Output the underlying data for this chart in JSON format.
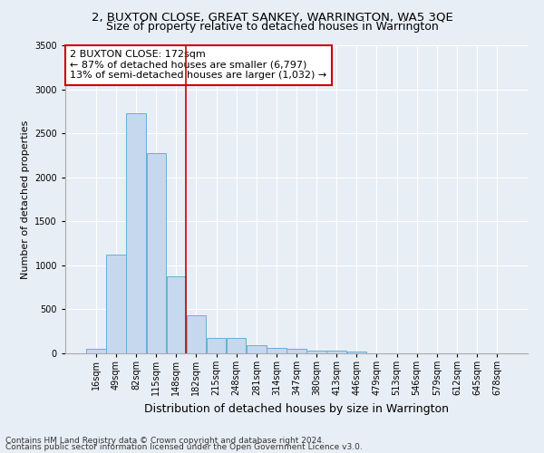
{
  "title": "2, BUXTON CLOSE, GREAT SANKEY, WARRINGTON, WA5 3QE",
  "subtitle": "Size of property relative to detached houses in Warrington",
  "xlabel": "Distribution of detached houses by size in Warrington",
  "ylabel": "Number of detached properties",
  "categories": [
    "16sqm",
    "49sqm",
    "82sqm",
    "115sqm",
    "148sqm",
    "182sqm",
    "215sqm",
    "248sqm",
    "281sqm",
    "314sqm",
    "347sqm",
    "380sqm",
    "413sqm",
    "446sqm",
    "479sqm",
    "513sqm",
    "546sqm",
    "579sqm",
    "612sqm",
    "645sqm",
    "678sqm"
  ],
  "values": [
    55,
    1120,
    2730,
    2270,
    875,
    430,
    170,
    170,
    90,
    60,
    55,
    35,
    30,
    20,
    5,
    5,
    0,
    0,
    0,
    0,
    0
  ],
  "bar_color": "#c5d8ee",
  "bar_edge_color": "#6aaed6",
  "annotation_text1": "2 BUXTON CLOSE: 172sqm",
  "annotation_text2": "← 87% of detached houses are smaller (6,797)",
  "annotation_text3": "13% of semi-detached houses are larger (1,032) →",
  "annotation_box_color": "#ffffff",
  "annotation_box_edge": "#cc0000",
  "vline_color": "#cc0000",
  "ylim": [
    0,
    3500
  ],
  "yticks": [
    0,
    500,
    1000,
    1500,
    2000,
    2500,
    3000,
    3500
  ],
  "footnote1": "Contains HM Land Registry data © Crown copyright and database right 2024.",
  "footnote2": "Contains public sector information licensed under the Open Government Licence v3.0.",
  "bg_color": "#e8eef5",
  "plot_bg_color": "#e8eef5",
  "title_fontsize": 9.5,
  "subtitle_fontsize": 9,
  "xlabel_fontsize": 9,
  "ylabel_fontsize": 8,
  "tick_fontsize": 7,
  "footnote_fontsize": 6.5,
  "annotation_fontsize": 8
}
